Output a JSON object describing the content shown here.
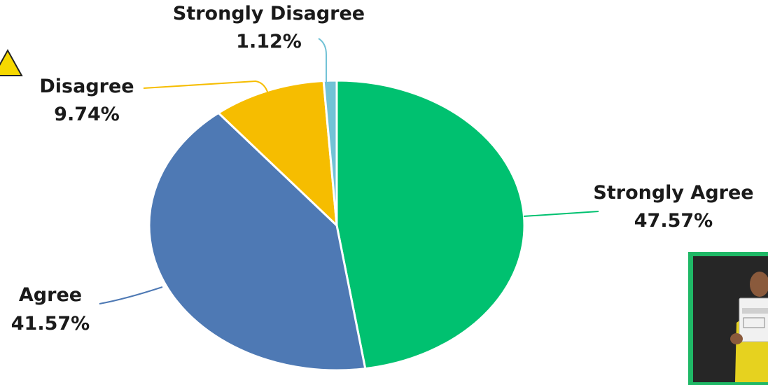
{
  "chart_data": {
    "type": "pie",
    "title": "",
    "slices": [
      {
        "label": "Strongly Agree",
        "value": 47.57,
        "display": "47.57%",
        "color": "#00c170"
      },
      {
        "label": "Agree",
        "value": 41.57,
        "display": "41.57%",
        "color": "#4e79b4"
      },
      {
        "label": "Disagree",
        "value": 9.74,
        "display": "9.74%",
        "color": "#f6bd00"
      },
      {
        "label": "Strongly Disagree",
        "value": 1.12,
        "display": "1.12%",
        "color": "#72c2d6"
      }
    ],
    "start": "12 o'clock",
    "direction": "clockwise",
    "legend": "none"
  },
  "photo": {
    "icon": "person-holding-certificate-photo",
    "frame_color": "#1fb866"
  },
  "warning": {
    "icon": "warning-triangle-icon",
    "color": "#f6d800"
  }
}
